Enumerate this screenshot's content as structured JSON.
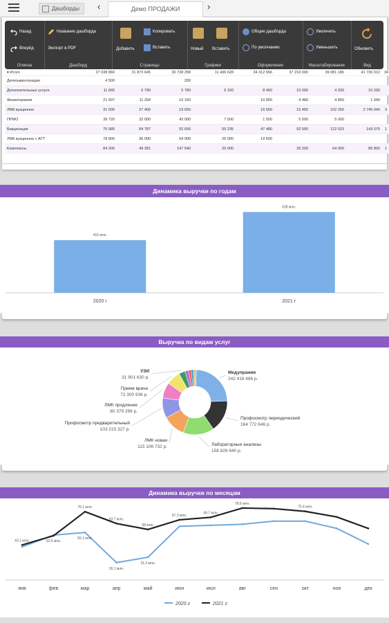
{
  "topbar": {
    "crumb": "Дашборды",
    "tab_title": "Демо ПРОДАЖИ",
    "back_glyph": "‹",
    "fwd_glyph": "›"
  },
  "ribbon": {
    "groups": [
      {
        "title": "Отмена",
        "buttons": [
          "Назад",
          "Вперёд"
        ]
      },
      {
        "title": "Дашборд",
        "buttons": [
          "Название дашборда",
          "Экспорт в PDF"
        ]
      },
      {
        "title": "Страницы",
        "buttons": [
          "Добавить",
          "Копировать",
          "Вставить"
        ]
      },
      {
        "title": "Графики",
        "buttons": [
          "Новый",
          "Вставить"
        ]
      },
      {
        "title": "Оформление",
        "buttons": [
          "Общие дашборда",
          "По умолчанию"
        ]
      },
      {
        "title": "Масштабирование",
        "buttons": [
          "Увеличить",
          "Уменьшить"
        ]
      },
      {
        "title": "Вид",
        "buttons": [
          "Обновить"
        ]
      }
    ]
  },
  "table": {
    "rows": [
      {
        "label": "▾ Итого",
        "cells": [
          "27 038 869",
          "31 873 645",
          "30 738 258",
          "11 436 628",
          "34 312 656",
          "37 153 000",
          "39 081 186",
          "41 736 012",
          "34"
        ]
      },
      {
        "label": "Дегельминтизация",
        "cells": [
          "4 500",
          "",
          "200",
          "",
          "",
          "",
          "",
          "",
          ""
        ]
      },
      {
        "label": "Дополнительные услуги",
        "cells": [
          "11 665",
          "6 790",
          "5 780",
          "6 150",
          "8 450",
          "10 000",
          "4 200",
          "10 200",
          ""
        ]
      },
      {
        "label": "Физиотерапия",
        "cells": [
          "21 507",
          "11 294",
          "10 160",
          "",
          "10 800",
          "4 480",
          "4 850",
          "1 940",
          ""
        ]
      },
      {
        "label": "ЛМК вукцинное",
        "cells": [
          "31 500",
          "37 400",
          "19 650",
          "",
          "16 500",
          "15 450",
          "102 250",
          "2 745 040",
          "3"
        ]
      },
      {
        "label": "ПРМО",
        "cells": [
          "39 720",
          "32 000",
          "43 000",
          "7 500",
          "1 500",
          "5 500",
          "5 000",
          "",
          ""
        ]
      },
      {
        "label": "Вакцинация",
        "cells": [
          "75 589",
          "84 787",
          "92 690",
          "55 235",
          "47 480",
          "92 550",
          "122 023",
          "143 075",
          "1"
        ]
      },
      {
        "label": "ЛМК вукцинное с АТТ",
        "cells": [
          "78 800",
          "36 000",
          "54 000",
          "26 000",
          "19 500",
          "",
          "",
          "",
          ""
        ]
      },
      {
        "label": "Комплексы",
        "cells": [
          "84 200",
          "49 391",
          "147 540",
          "20 000",
          "",
          "39 200",
          "64 000",
          "85 800",
          "1"
        ]
      }
    ]
  },
  "chart_year": {
    "title": "Динамика выручки по годам",
    "chart_data": {
      "type": "bar",
      "categories": [
        "2020 г",
        "2021 г"
      ],
      "values": [
        416,
        638
      ],
      "value_labels": [
        "416 млн.",
        "638 млн."
      ],
      "ylim": [
        0,
        700
      ]
    }
  },
  "chart_pie": {
    "title": "Выручка по видам услуг",
    "chart_data": {
      "type": "pie",
      "slices": [
        {
          "name": "Медупрания",
          "value": 242418486,
          "label": "242 418 486 р.",
          "color": "#7fb1e8"
        },
        {
          "name": "Профосмотр периодический",
          "value": 164772646,
          "label": "164 772 646 р.",
          "color": "#333333"
        },
        {
          "name": "Лабораторные анализы",
          "value": 158828640,
          "label": "158 828 640 р.",
          "color": "#8fdc6f"
        },
        {
          "name": "ЛМК новая",
          "value": 115106732,
          "label": "115 106 732 р.",
          "color": "#f4a35c"
        },
        {
          "name": "Профосмотр предварительный",
          "value": 103215327,
          "label": "103 215 327 р.",
          "color": "#8f96e6"
        },
        {
          "name": "ЛМК продление",
          "value": 80379299,
          "label": "80 379 299 р.",
          "color": "#f07ec5"
        },
        {
          "name": "Прием врача",
          "value": 72300936,
          "label": "72 300 936 р.",
          "color": "#f2e36c"
        },
        {
          "name": "УЗИ",
          "value": 31901630,
          "label": "31 901 630 р.",
          "color": "#3c9d5f"
        },
        {
          "name": "",
          "value": 18000000,
          "label": "",
          "color": "#b66ad8"
        },
        {
          "name": "",
          "value": 14000000,
          "label": "",
          "color": "#e65d5d"
        },
        {
          "name": "",
          "value": 11000000,
          "label": "",
          "color": "#2e8fd6"
        },
        {
          "name": "",
          "value": 9000000,
          "label": "",
          "color": "#d6c05a"
        },
        {
          "name": "",
          "value": 7000000,
          "label": "",
          "color": "#5fc0c0"
        }
      ]
    }
  },
  "chart_month": {
    "title": "Динамика выручки по месяцам",
    "chart_data": {
      "type": "line",
      "categories": [
        "янв",
        "фев",
        "мар",
        "апр",
        "май",
        "июн",
        "июл",
        "авг",
        "сен",
        "окт",
        "ноя",
        "дек"
      ],
      "ylim": [
        0,
        90
      ],
      "series": [
        {
          "name": "2020 г",
          "color": "#6fa8e0",
          "values": [
            41.3,
            52.6,
            55.1,
            26.1,
            31.3,
            61.0,
            62.0,
            63.0,
            66.0,
            66.0,
            59.0,
            44.0
          ],
          "labels": [
            "",
            "52.6 млн.",
            "55.1 млн.",
            "26.1 млн.",
            "31.3 млн.",
            "",
            "",
            "",
            "",
            "",
            "",
            ""
          ]
        },
        {
          "name": "2021 г",
          "color": "#222222",
          "values": [
            43.1,
            52.0,
            75.1,
            63.7,
            58.0,
            67.3,
            69.7,
            78.6,
            78.0,
            75.4,
            70.0,
            59.0
          ],
          "labels": [
            "43.1 млн.",
            "",
            "75.1 млн.",
            "63.7 млн.",
            "58 млн.",
            "67.3 млн.",
            "69.7 млн.",
            "78.6 млн.",
            "",
            "75.4 млн.",
            "",
            ""
          ]
        }
      ]
    }
  }
}
